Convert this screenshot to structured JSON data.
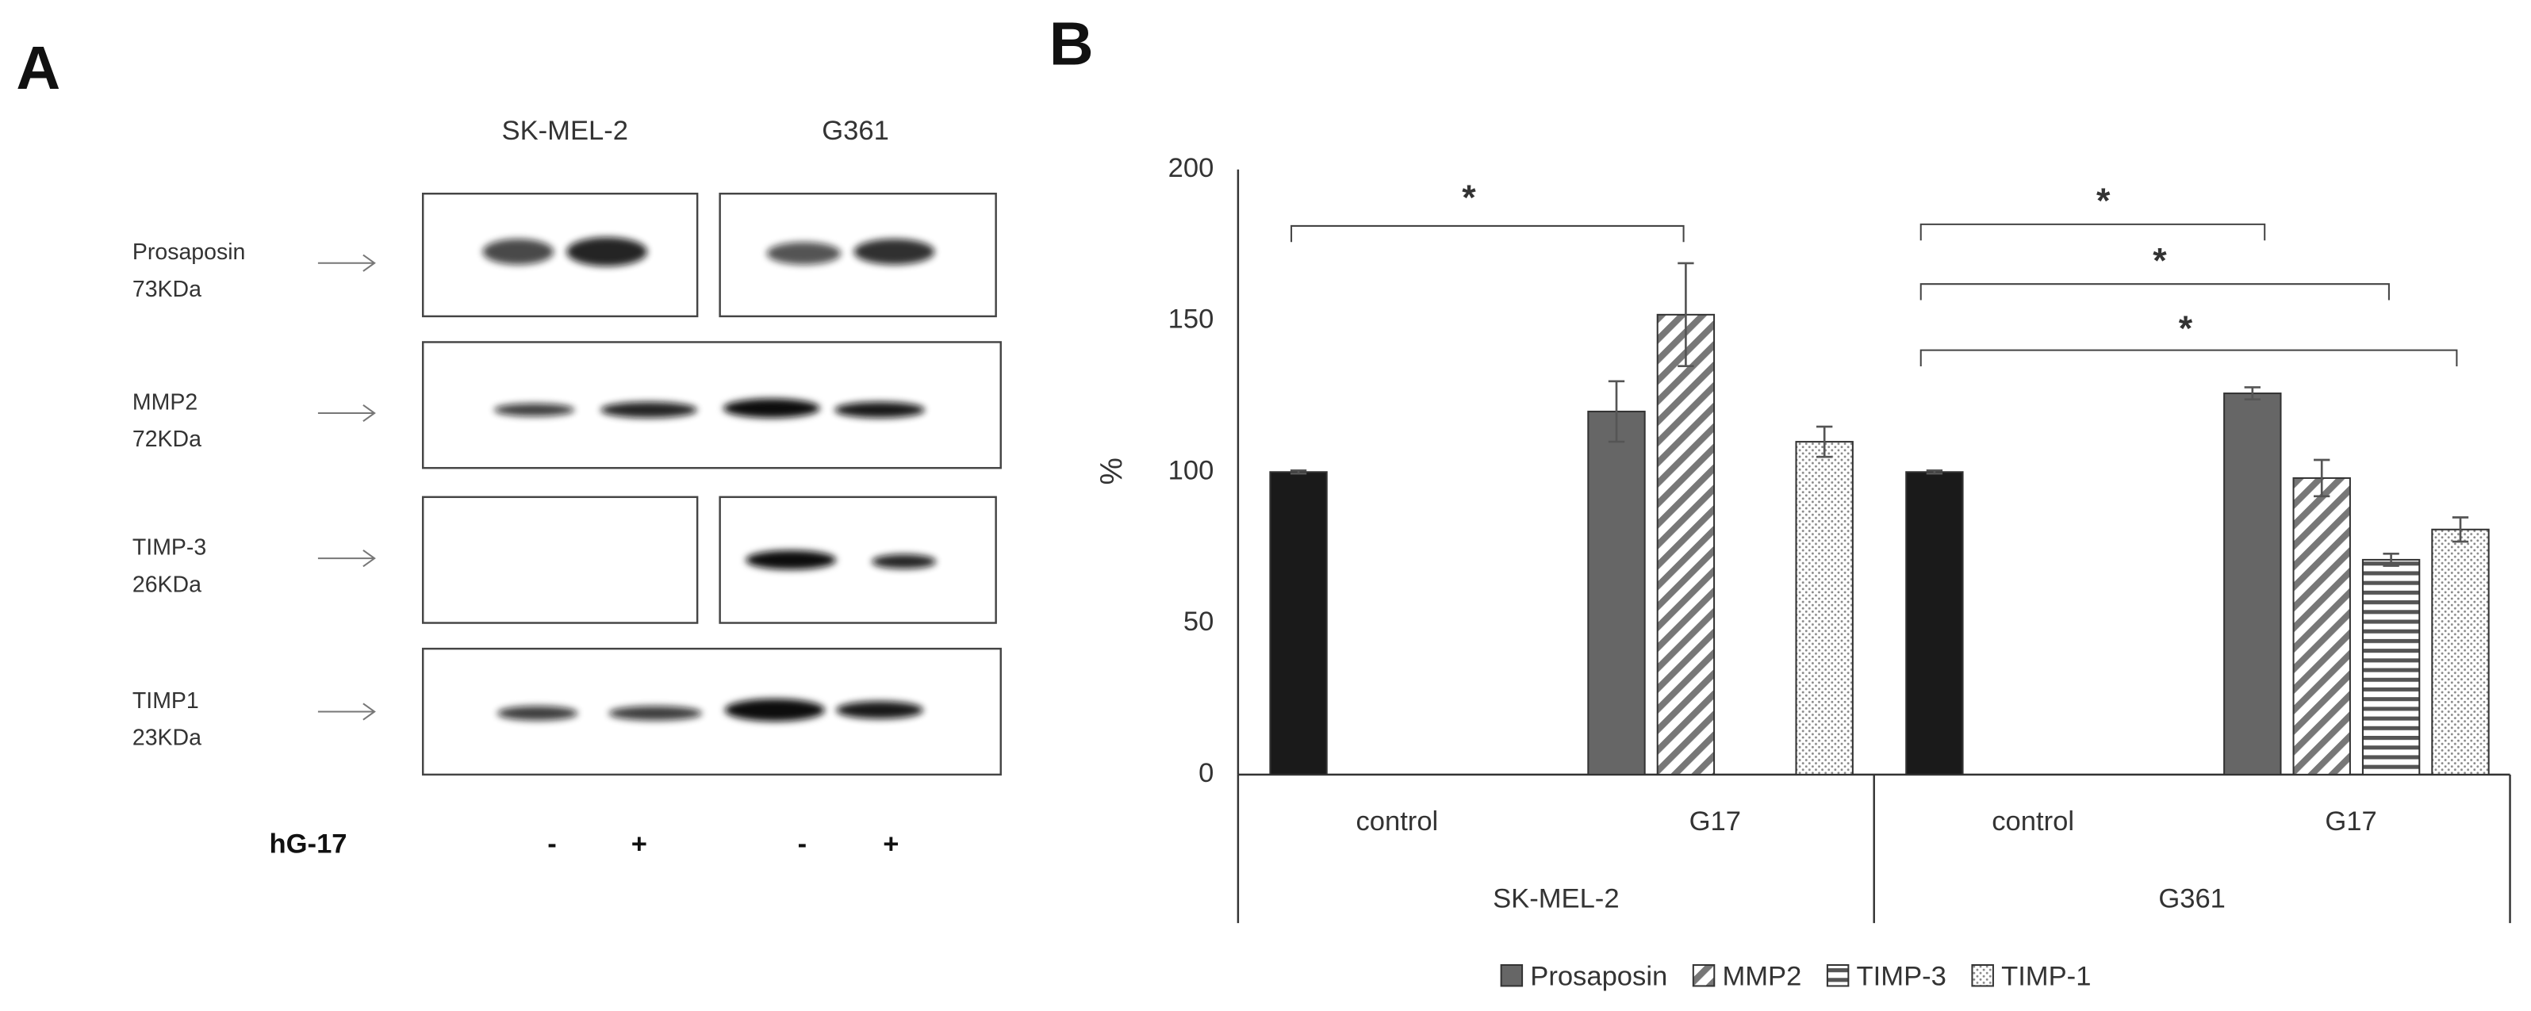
{
  "panel_a": {
    "label": "A",
    "cell_lines": [
      "SK-MEL-2",
      "G361"
    ],
    "rows": [
      {
        "protein": "Prosaposin",
        "size": "73KDa"
      },
      {
        "protein": "MMP2",
        "size": "72KDa"
      },
      {
        "protein": "TIMP-3",
        "size": "26KDa"
      },
      {
        "protein": "TIMP1",
        "size": "23KDa"
      }
    ],
    "treatment_label": "hG-17",
    "lanes": [
      "-",
      "+",
      "-",
      "+"
    ]
  },
  "chart_data": {
    "type": "bar",
    "title": "B",
    "ylabel": "%",
    "groups": [
      {
        "name": "SK-MEL-2",
        "categories": [
          "control",
          "G17"
        ]
      },
      {
        "name": "G361",
        "categories": [
          "control",
          "G17"
        ]
      }
    ],
    "series": [
      {
        "color": "#1a1a1a",
        "pattern": "solid",
        "values": [
          100,
          null,
          100,
          null
        ],
        "errors": [
          0.5,
          null,
          0.5,
          null
        ]
      },
      {
        "name": "Prosaposin",
        "color": "#666666",
        "pattern": "solid",
        "values": [
          null,
          120,
          null,
          126
        ],
        "errors": [
          null,
          10,
          null,
          2
        ]
      },
      {
        "name": "MMP2",
        "color": "#777777",
        "pattern": "diagonal",
        "values": [
          null,
          152,
          null,
          98
        ],
        "errors": [
          null,
          17,
          null,
          6
        ]
      },
      {
        "name": "TIMP-3",
        "color": "#555555",
        "pattern": "horizontal",
        "values": [
          null,
          null,
          null,
          71
        ],
        "errors": [
          null,
          null,
          null,
          2
        ]
      },
      {
        "name": "TIMP-1",
        "color": "#888888",
        "pattern": "dots",
        "values": [
          null,
          110,
          null,
          81
        ],
        "errors": [
          null,
          5,
          null,
          4
        ]
      }
    ],
    "ylim": [
      0,
      200
    ],
    "yticks": [
      0,
      50,
      100,
      150,
      200
    ],
    "grid": false,
    "annotations": [
      "*",
      "*",
      "*",
      "*"
    ],
    "legend": "bottom"
  }
}
